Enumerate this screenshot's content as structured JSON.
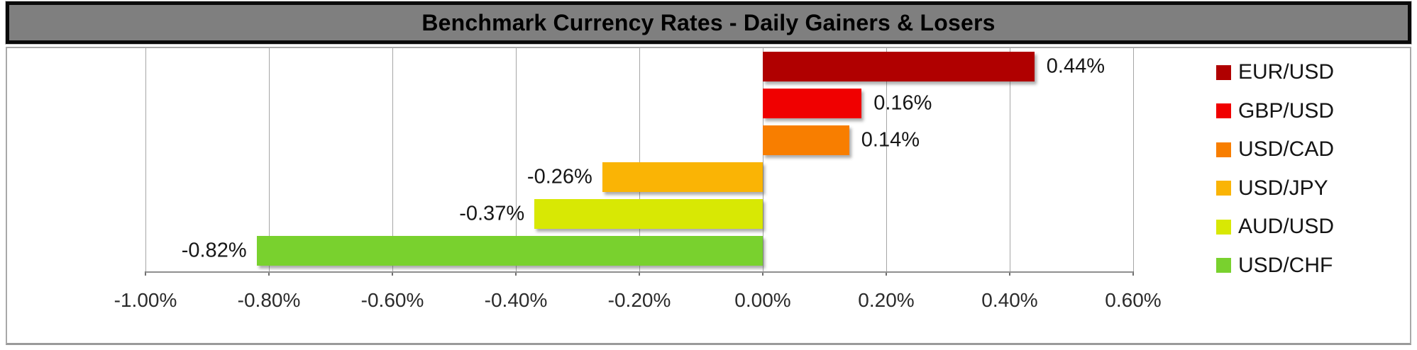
{
  "title": "Benchmark Currency Rates - Daily Gainers & Losers",
  "chart_data": {
    "type": "bar",
    "orientation": "horizontal",
    "title": "Benchmark Currency Rates - Daily Gainers & Losers",
    "series": [
      {
        "name": "EUR/USD",
        "value": 0.44,
        "label": "0.44%",
        "color": "#b00000"
      },
      {
        "name": "GBP/USD",
        "value": 0.16,
        "label": "0.16%",
        "color": "#f00000"
      },
      {
        "name": "USD/CAD",
        "value": 0.14,
        "label": "0.14%",
        "color": "#f87e00"
      },
      {
        "name": "USD/JPY",
        "value": -0.26,
        "label": "-0.26%",
        "color": "#fab405"
      },
      {
        "name": "AUD/USD",
        "value": -0.37,
        "label": "-0.37%",
        "color": "#d8e804"
      },
      {
        "name": "USD/CHF",
        "value": -0.82,
        "label": "-0.82%",
        "color": "#79d12e"
      }
    ],
    "x_axis": {
      "min": -1.0,
      "max": 0.6,
      "tick_labels": [
        "-1.00%",
        "-0.80%",
        "-0.60%",
        "-0.40%",
        "-0.20%",
        "0.00%",
        "0.20%",
        "0.40%",
        "0.60%"
      ],
      "gridlines": true
    },
    "legend": {
      "position": "right",
      "entries": [
        "EUR/USD",
        "GBP/USD",
        "USD/CAD",
        "USD/JPY",
        "AUD/USD",
        "USD/CHF"
      ]
    }
  },
  "colors": {
    "title_bg": "#7f7f7f",
    "title_border": "#0a0a0a",
    "title_text": "#000000",
    "plot_bg": "#ffffff",
    "gridline": "#a6a6a6",
    "axis_line": "#8f8f8f",
    "tick_text": "#2b2b2b",
    "chart_border": "#a9a9a9"
  }
}
